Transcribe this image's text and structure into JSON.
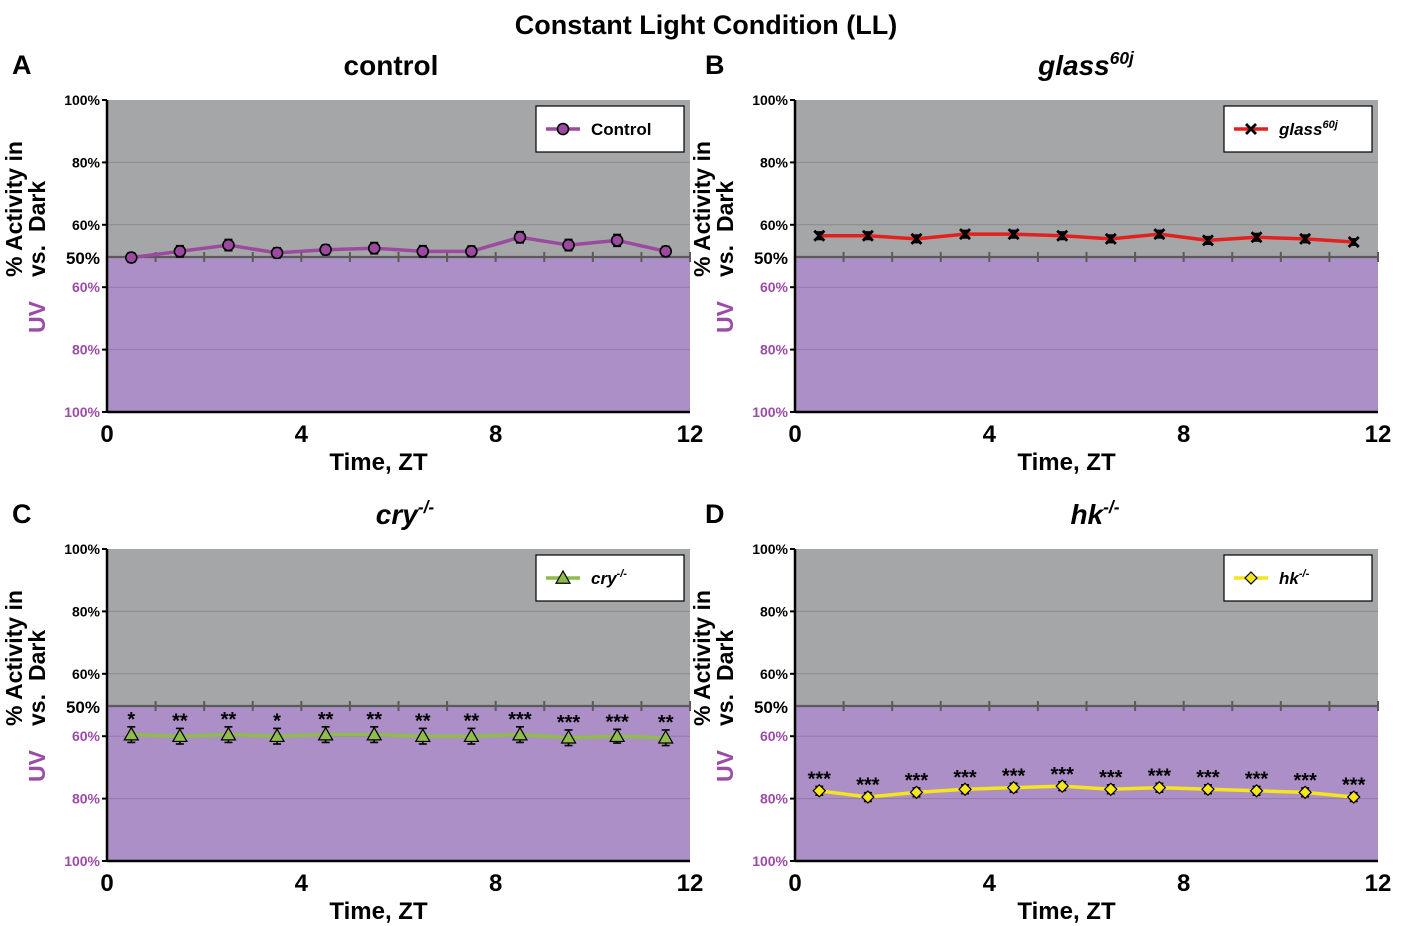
{
  "figure_title": "Constant Light Condition (LL)",
  "panel_letters": [
    "A",
    "B",
    "C",
    "D"
  ],
  "colors": {
    "dark_region": "#a5a6a8",
    "uv_region": "#ab8fc6",
    "uv_label": "#9a4ca6",
    "control": "#9c4aa0",
    "glass": "#e0211f",
    "cry": "#8fbc4a",
    "hk": "#f5e51c"
  },
  "chart_data": [
    {
      "type": "line",
      "panel": "A",
      "title_parts": [
        {
          "text": "control",
          "italic": false
        }
      ],
      "xlabel": "Time, ZT",
      "ylabel_top": "% Activity  in",
      "ylabel_mid": "vs.",
      "ylabel_dark": "Dark",
      "ylabel_uv": "UV",
      "x_ticks": [
        "0",
        "4",
        "8",
        "12"
      ],
      "xlim": [
        0,
        12
      ],
      "y_ticks_dark": [
        "100%",
        "80%",
        "60%"
      ],
      "y_ticks_uv": [
        "60%",
        "80%",
        "100%"
      ],
      "y_mid_label": "50%",
      "ylim": [
        0,
        100
      ],
      "grid": true,
      "legend_position": "top-right",
      "series": [
        {
          "name": "Control",
          "marker": "circle",
          "color_key": "control",
          "x": [
            0.5,
            1.5,
            2.5,
            3.5,
            4.5,
            5.5,
            6.5,
            7.5,
            8.5,
            9.5,
            10.5,
            11.5
          ],
          "y": [
            49.5,
            51.5,
            53.5,
            51.0,
            52.0,
            52.5,
            51.5,
            51.5,
            56.0,
            53.5,
            55.0,
            51.5
          ],
          "err": [
            1.5,
            1.8,
            1.8,
            1.6,
            1.6,
            1.8,
            1.8,
            1.7,
            1.8,
            1.8,
            1.9,
            1.6
          ],
          "stars": []
        }
      ]
    },
    {
      "type": "line",
      "panel": "B",
      "title_parts": [
        {
          "text": "glass",
          "italic": true
        },
        {
          "text": "60j",
          "italic": true,
          "sup": true
        }
      ],
      "xlabel": "Time, ZT",
      "ylabel_top": "% Activity  in",
      "ylabel_mid": "vs.",
      "ylabel_dark": "Dark",
      "ylabel_uv": "UV",
      "x_ticks": [
        "0",
        "4",
        "8",
        "12"
      ],
      "xlim": [
        0,
        12
      ],
      "y_ticks_dark": [
        "100%",
        "80%",
        "60%"
      ],
      "y_ticks_uv": [
        "60%",
        "80%",
        "100%"
      ],
      "y_mid_label": "50%",
      "ylim": [
        0,
        100
      ],
      "grid": true,
      "legend_position": "top-right",
      "series": [
        {
          "name": "glass",
          "name_sup": "60j",
          "marker": "x",
          "color_key": "glass",
          "x": [
            0.5,
            1.5,
            2.5,
            3.5,
            4.5,
            5.5,
            6.5,
            7.5,
            8.5,
            9.5,
            10.5,
            11.5
          ],
          "y": [
            56.5,
            56.5,
            55.5,
            57.0,
            57.0,
            56.5,
            55.5,
            57.0,
            55.0,
            56.0,
            55.5,
            54.5
          ],
          "err": [
            1.2,
            1.2,
            1.2,
            1.2,
            1.2,
            1.2,
            1.2,
            1.2,
            1.2,
            1.2,
            1.2,
            1.0
          ],
          "stars": []
        }
      ]
    },
    {
      "type": "line",
      "panel": "C",
      "title_parts": [
        {
          "text": "cry",
          "italic": true
        },
        {
          "text": "-/-",
          "italic": true,
          "sup": true
        }
      ],
      "xlabel": "Time, ZT",
      "ylabel_top": "% Activity  in",
      "ylabel_mid": "vs.",
      "ylabel_dark": "Dark",
      "ylabel_uv": "UV",
      "x_ticks": [
        "0",
        "4",
        "8",
        "12"
      ],
      "xlim": [
        0,
        12
      ],
      "y_ticks_dark": [
        "100%",
        "80%",
        "60%"
      ],
      "y_ticks_uv": [
        "60%",
        "80%",
        "100%"
      ],
      "y_mid_label": "50%",
      "ylim": [
        0,
        100
      ],
      "grid": true,
      "legend_position": "top-right",
      "series": [
        {
          "name": "cry",
          "name_sup": "-/-",
          "marker": "triangle",
          "color_key": "cry",
          "x": [
            0.5,
            1.5,
            2.5,
            3.5,
            4.5,
            5.5,
            6.5,
            7.5,
            8.5,
            9.5,
            10.5,
            11.5
          ],
          "y": [
            40.5,
            40.0,
            40.5,
            40.0,
            40.5,
            40.5,
            40.0,
            40.0,
            40.5,
            39.5,
            40.0,
            39.5
          ],
          "err": [
            2.5,
            2.5,
            2.5,
            2.5,
            2.5,
            2.5,
            2.5,
            2.5,
            2.5,
            2.5,
            2.2,
            2.5
          ],
          "stars": [
            "*",
            "**",
            "**",
            "*",
            "**",
            "**",
            "**",
            "**",
            "***",
            "***",
            "***",
            "**"
          ]
        }
      ]
    },
    {
      "type": "line",
      "panel": "D",
      "title_parts": [
        {
          "text": "hk",
          "italic": true
        },
        {
          "text": "-/-",
          "italic": true,
          "sup": true
        }
      ],
      "xlabel": "Time, ZT",
      "ylabel_top": "% Activity  in",
      "ylabel_mid": "vs.",
      "ylabel_dark": "Dark",
      "ylabel_uv": "UV",
      "x_ticks": [
        "0",
        "4",
        "8",
        "12"
      ],
      "xlim": [
        0,
        12
      ],
      "y_ticks_dark": [
        "100%",
        "80%",
        "60%"
      ],
      "y_ticks_uv": [
        "60%",
        "80%",
        "100%"
      ],
      "y_mid_label": "50%",
      "ylim": [
        0,
        100
      ],
      "grid": true,
      "legend_position": "top-right",
      "series": [
        {
          "name": "hk",
          "name_sup": "-/-",
          "marker": "diamond",
          "color_key": "hk",
          "x": [
            0.5,
            1.5,
            2.5,
            3.5,
            4.5,
            5.5,
            6.5,
            7.5,
            8.5,
            9.5,
            10.5,
            11.5
          ],
          "y": [
            22.5,
            20.5,
            22.0,
            23.0,
            23.5,
            24.0,
            23.0,
            23.5,
            23.0,
            22.5,
            22.0,
            20.5
          ],
          "err": [
            1.4,
            1.4,
            1.4,
            1.4,
            1.4,
            1.4,
            1.4,
            1.4,
            1.4,
            1.4,
            1.4,
            1.4
          ],
          "stars": [
            "***",
            "***",
            "***",
            "***",
            "***",
            "***",
            "***",
            "***",
            "***",
            "***",
            "***",
            "***"
          ]
        }
      ]
    }
  ]
}
